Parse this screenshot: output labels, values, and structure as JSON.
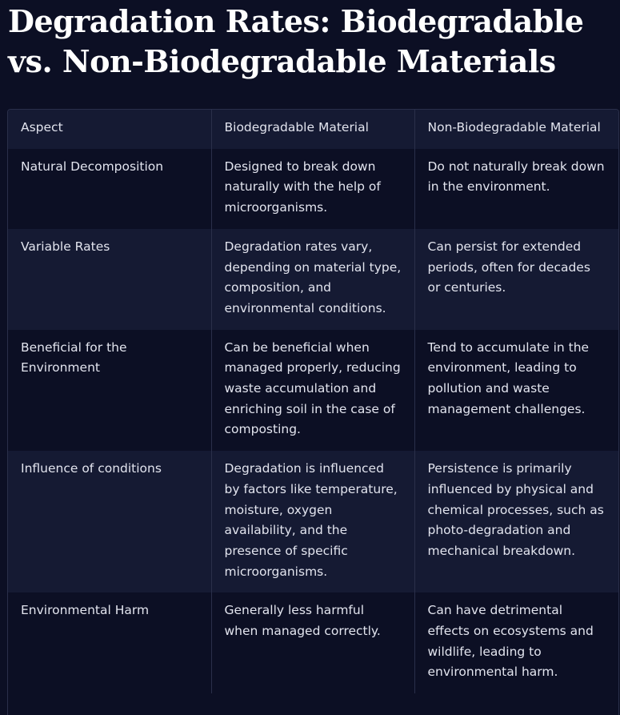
{
  "page": {
    "title": "Degradation Rates: Biodegradable vs. Non-Biodegradable Materials"
  },
  "table": {
    "headers": [
      "Aspect",
      "Biodegradable Material",
      "Non-Biodegradable Material"
    ],
    "rows": [
      [
        "Natural Decomposition",
        "Designed to break down naturally with the help of microorganisms.",
        "Do not naturally break down in the environment."
      ],
      [
        "Variable Rates",
        "Degradation rates vary, depending on material type, composition, and environmental conditions.",
        "Can persist for extended periods, often for decades or centuries."
      ],
      [
        "Beneficial for the Environment",
        "Can be beneficial when managed properly, reducing waste accumulation and enriching soil in the case of composting.",
        "Tend to accumulate in the environment, leading to pollution and waste management challenges."
      ],
      [
        "Influence of conditions",
        "Degradation is influenced by factors like temperature, moisture, oxygen availability, and the presence of specific microorganisms.",
        "Persistence is primarily influenced by physical and chemical processes, such as photo-degradation and mechanical breakdown."
      ],
      [
        "Environmental Harm",
        "Generally less harmful when managed correctly.",
        "Can have detrimental effects on ecosystems and wildlife, leading to environmental harm."
      ]
    ]
  }
}
